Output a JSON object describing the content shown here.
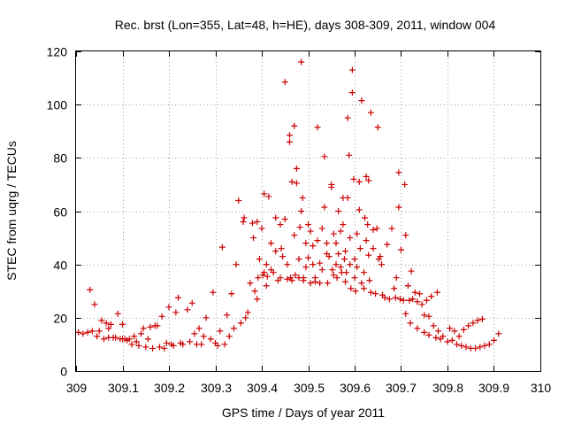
{
  "chart_data": {
    "type": "scatter",
    "title": "Rec. brst (Lon=355, Lat=48, h=HE), days 308-309, 2011, window 004",
    "xlabel": "GPS time / Days of year 2011",
    "ylabel": "STEC from uqrg / TECUs",
    "xlim": [
      309,
      310
    ],
    "ylim": [
      0,
      120
    ],
    "x_ticks": [
      "309",
      "309.1",
      "309.2",
      "309.3",
      "309.4",
      "309.5",
      "309.6",
      "309.7",
      "309.8",
      "309.9",
      "310"
    ],
    "y_ticks": [
      "0",
      "20",
      "40",
      "60",
      "80",
      "100",
      "120"
    ],
    "grid": true,
    "marker": "+",
    "color": "#cc0000",
    "points": [
      [
        309.005,
        14.5
      ],
      [
        309.015,
        14
      ],
      [
        309.025,
        14.5
      ],
      [
        309.03,
        30.5
      ],
      [
        309.035,
        15
      ],
      [
        309.04,
        25
      ],
      [
        309.045,
        13
      ],
      [
        309.05,
        15
      ],
      [
        309.055,
        19
      ],
      [
        309.06,
        12
      ],
      [
        309.065,
        18
      ],
      [
        309.07,
        12.5
      ],
      [
        309.07,
        16
      ],
      [
        309.075,
        17.5
      ],
      [
        309.08,
        12.5
      ],
      [
        309.085,
        12.5
      ],
      [
        309.09,
        21.5
      ],
      [
        309.095,
        12
      ],
      [
        309.1,
        12
      ],
      [
        309.1,
        17.5
      ],
      [
        309.105,
        12
      ],
      [
        309.11,
        11.5
      ],
      [
        309.115,
        12
      ],
      [
        309.12,
        10
      ],
      [
        309.125,
        13
      ],
      [
        309.13,
        11
      ],
      [
        309.135,
        9.5
      ],
      [
        309.14,
        14
      ],
      [
        309.145,
        16
      ],
      [
        309.15,
        9
      ],
      [
        309.155,
        12
      ],
      [
        309.16,
        16.5
      ],
      [
        309.165,
        8.5
      ],
      [
        309.17,
        17
      ],
      [
        309.175,
        17
      ],
      [
        309.18,
        9
      ],
      [
        309.185,
        20.5
      ],
      [
        309.19,
        8.5
      ],
      [
        309.195,
        10.5
      ],
      [
        309.2,
        24
      ],
      [
        309.205,
        10
      ],
      [
        309.21,
        9.5
      ],
      [
        309.215,
        22
      ],
      [
        309.22,
        27.5
      ],
      [
        309.225,
        10.5
      ],
      [
        309.23,
        10
      ],
      [
        309.24,
        23
      ],
      [
        309.245,
        11
      ],
      [
        309.25,
        25.5
      ],
      [
        309.255,
        14
      ],
      [
        309.26,
        10
      ],
      [
        309.265,
        16
      ],
      [
        309.27,
        10
      ],
      [
        309.275,
        13
      ],
      [
        309.28,
        20
      ],
      [
        309.29,
        12
      ],
      [
        309.295,
        29.5
      ],
      [
        309.3,
        10.5
      ],
      [
        309.305,
        9.5
      ],
      [
        309.31,
        15
      ],
      [
        309.315,
        46.5
      ],
      [
        309.32,
        10
      ],
      [
        309.325,
        21
      ],
      [
        309.33,
        13
      ],
      [
        309.335,
        29
      ],
      [
        309.34,
        16
      ],
      [
        309.345,
        40
      ],
      [
        309.35,
        64
      ],
      [
        309.355,
        18
      ],
      [
        309.36,
        56
      ],
      [
        309.362,
        57.5
      ],
      [
        309.365,
        20
      ],
      [
        309.37,
        22
      ],
      [
        309.375,
        33
      ],
      [
        309.38,
        55.5
      ],
      [
        309.382,
        50
      ],
      [
        309.385,
        30
      ],
      [
        309.39,
        56
      ],
      [
        309.39,
        27
      ],
      [
        309.392,
        35
      ],
      [
        309.395,
        42
      ],
      [
        309.4,
        53.5
      ],
      [
        309.402,
        36
      ],
      [
        309.405,
        37
      ],
      [
        309.405,
        66.5
      ],
      [
        309.41,
        32
      ],
      [
        309.41,
        40
      ],
      [
        309.412,
        35.5
      ],
      [
        309.415,
        65.5
      ],
      [
        309.42,
        48
      ],
      [
        309.42,
        38
      ],
      [
        309.425,
        37
      ],
      [
        309.43,
        57.5
      ],
      [
        309.43,
        45
      ],
      [
        309.435,
        34
      ],
      [
        309.44,
        55
      ],
      [
        309.44,
        35
      ],
      [
        309.442,
        46
      ],
      [
        309.445,
        43
      ],
      [
        309.45,
        108.5
      ],
      [
        309.45,
        57
      ],
      [
        309.455,
        40
      ],
      [
        309.455,
        34.5
      ],
      [
        309.46,
        88.5
      ],
      [
        309.46,
        86
      ],
      [
        309.462,
        35
      ],
      [
        309.465,
        71
      ],
      [
        309.465,
        34
      ],
      [
        309.47,
        92
      ],
      [
        309.47,
        51
      ],
      [
        309.472,
        36
      ],
      [
        309.475,
        76
      ],
      [
        309.475,
        70.5
      ],
      [
        309.48,
        42
      ],
      [
        309.48,
        35
      ],
      [
        309.482,
        54
      ],
      [
        309.485,
        116
      ],
      [
        309.485,
        60
      ],
      [
        309.488,
        65
      ],
      [
        309.49,
        35
      ],
      [
        309.49,
        34
      ],
      [
        309.495,
        39
      ],
      [
        309.495,
        48
      ],
      [
        309.5,
        55
      ],
      [
        309.5,
        42.5
      ],
      [
        309.505,
        52.5
      ],
      [
        309.505,
        33
      ],
      [
        309.51,
        40
      ],
      [
        309.51,
        47
      ],
      [
        309.515,
        33.5
      ],
      [
        309.515,
        35
      ],
      [
        309.52,
        91.5
      ],
      [
        309.52,
        49
      ],
      [
        309.525,
        40.5
      ],
      [
        309.525,
        33
      ],
      [
        309.53,
        53.5
      ],
      [
        309.53,
        38
      ],
      [
        309.535,
        80.5
      ],
      [
        309.535,
        61.5
      ],
      [
        309.54,
        48
      ],
      [
        309.54,
        44
      ],
      [
        309.542,
        33
      ],
      [
        309.545,
        43
      ],
      [
        309.55,
        70
      ],
      [
        309.55,
        69
      ],
      [
        309.552,
        38
      ],
      [
        309.555,
        51.5
      ],
      [
        309.555,
        36
      ],
      [
        309.56,
        48
      ],
      [
        309.56,
        40
      ],
      [
        309.562,
        35
      ],
      [
        309.565,
        44
      ],
      [
        309.565,
        60
      ],
      [
        309.57,
        52.5
      ],
      [
        309.57,
        39
      ],
      [
        309.572,
        37
      ],
      [
        309.575,
        65
      ],
      [
        309.575,
        55
      ],
      [
        309.578,
        42
      ],
      [
        309.58,
        33.5
      ],
      [
        309.58,
        45
      ],
      [
        309.582,
        37
      ],
      [
        309.585,
        95
      ],
      [
        309.585,
        65
      ],
      [
        309.588,
        81
      ],
      [
        309.59,
        50
      ],
      [
        309.59,
        40
      ],
      [
        309.592,
        31
      ],
      [
        309.595,
        113
      ],
      [
        309.595,
        104.5
      ],
      [
        309.598,
        72
      ],
      [
        309.6,
        42
      ],
      [
        309.6,
        35
      ],
      [
        309.602,
        30
      ],
      [
        309.605,
        51.5
      ],
      [
        309.605,
        39
      ],
      [
        309.61,
        71
      ],
      [
        309.61,
        60.5
      ],
      [
        309.612,
        46
      ],
      [
        309.615,
        33
      ],
      [
        309.615,
        101.5
      ],
      [
        309.62,
        37
      ],
      [
        309.62,
        31
      ],
      [
        309.622,
        57.5
      ],
      [
        309.625,
        73
      ],
      [
        309.625,
        49
      ],
      [
        309.628,
        55
      ],
      [
        309.63,
        71.5
      ],
      [
        309.63,
        43.5
      ],
      [
        309.632,
        34
      ],
      [
        309.635,
        97
      ],
      [
        309.635,
        29.5
      ],
      [
        309.64,
        53
      ],
      [
        309.64,
        46
      ],
      [
        309.645,
        29
      ],
      [
        309.648,
        53.5
      ],
      [
        309.65,
        91.5
      ],
      [
        309.652,
        42
      ],
      [
        309.655,
        43
      ],
      [
        309.658,
        40
      ],
      [
        309.66,
        28.5
      ],
      [
        309.665,
        27.5
      ],
      [
        309.67,
        47.5
      ],
      [
        309.675,
        27
      ],
      [
        309.68,
        53.5
      ],
      [
        309.685,
        31
      ],
      [
        309.688,
        27.5
      ],
      [
        309.69,
        35
      ],
      [
        309.695,
        74.5
      ],
      [
        309.695,
        61.5
      ],
      [
        309.698,
        27
      ],
      [
        309.7,
        45.5
      ],
      [
        309.705,
        26.5
      ],
      [
        309.708,
        70
      ],
      [
        309.71,
        51
      ],
      [
        309.71,
        21.5
      ],
      [
        309.715,
        32
      ],
      [
        309.718,
        26.5
      ],
      [
        309.72,
        18
      ],
      [
        309.722,
        37.5
      ],
      [
        309.725,
        27
      ],
      [
        309.73,
        29.5
      ],
      [
        309.735,
        16
      ],
      [
        309.735,
        26
      ],
      [
        309.74,
        29
      ],
      [
        309.745,
        25
      ],
      [
        309.75,
        21
      ],
      [
        309.75,
        14.5
      ],
      [
        309.755,
        26.5
      ],
      [
        309.76,
        20.5
      ],
      [
        309.76,
        13.5
      ],
      [
        309.765,
        28
      ],
      [
        309.77,
        17
      ],
      [
        309.775,
        12.5
      ],
      [
        309.778,
        29.5
      ],
      [
        309.78,
        15
      ],
      [
        309.785,
        12
      ],
      [
        309.79,
        13
      ],
      [
        309.8,
        11
      ],
      [
        309.805,
        16
      ],
      [
        309.81,
        11.5
      ],
      [
        309.815,
        15
      ],
      [
        309.82,
        10
      ],
      [
        309.825,
        13
      ],
      [
        309.83,
        9.5
      ],
      [
        309.835,
        15.5
      ],
      [
        309.84,
        9
      ],
      [
        309.845,
        17
      ],
      [
        309.85,
        8.5
      ],
      [
        309.855,
        18
      ],
      [
        309.86,
        8.5
      ],
      [
        309.865,
        19
      ],
      [
        309.87,
        9
      ],
      [
        309.875,
        19.5
      ],
      [
        309.88,
        9.5
      ],
      [
        309.89,
        10
      ],
      [
        309.9,
        11.5
      ],
      [
        309.91,
        14
      ]
    ]
  }
}
